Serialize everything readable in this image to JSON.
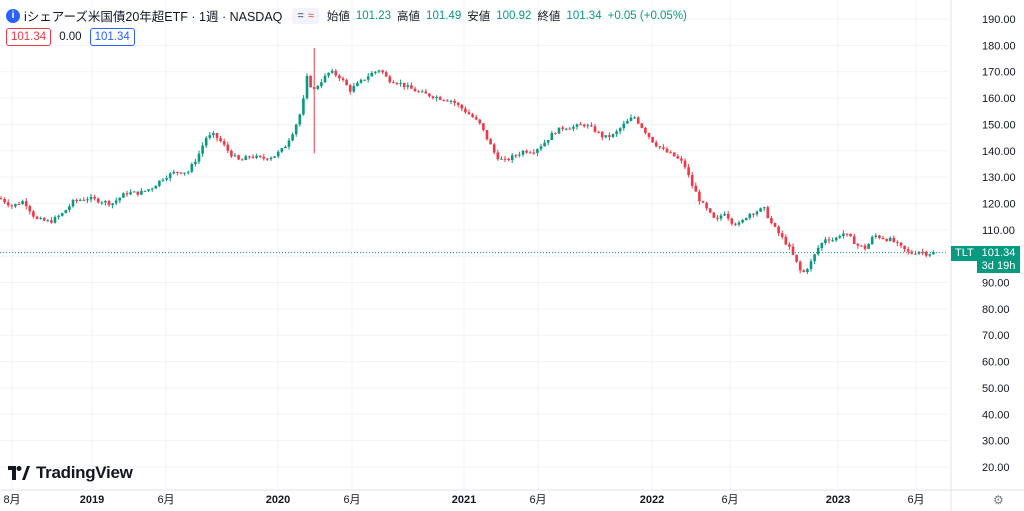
{
  "header": {
    "icon_letter": "i",
    "title": "iシェアーズ米国債20年超ETF · 1週 · NASDAQ",
    "pill_left": "=",
    "pill_right": "≈",
    "ohlc": [
      {
        "label": "始値",
        "value": "101.23"
      },
      {
        "label": "高値",
        "value": "101.49"
      },
      {
        "label": "安値",
        "value": "100.92"
      },
      {
        "label": "終値",
        "value": "101.34"
      },
      {
        "label": "",
        "value": "+0.05 (+0.05%)"
      }
    ]
  },
  "indicators": {
    "bid": "101.34",
    "spread": "0.00",
    "ask": "101.34"
  },
  "price_scale": {
    "labels": [
      "190.00",
      "180.00",
      "170.00",
      "160.00",
      "150.00",
      "140.00",
      "130.00",
      "120.00",
      "110.00",
      "100.00",
      "90.00",
      "80.00",
      "70.00",
      "60.00",
      "50.00",
      "40.00",
      "30.00",
      "20.00"
    ],
    "symbol_tag": "TLT",
    "last_price": "101.34",
    "countdown": "3d 19h"
  },
  "time_scale": {
    "labels": [
      {
        "text": "8月",
        "bold": false
      },
      {
        "text": "2019",
        "bold": true
      },
      {
        "text": "6月",
        "bold": false
      },
      {
        "text": "2020",
        "bold": true
      },
      {
        "text": "6月",
        "bold": false
      },
      {
        "text": "2021",
        "bold": true
      },
      {
        "text": "6月",
        "bold": false
      },
      {
        "text": "2022",
        "bold": true
      },
      {
        "text": "6月",
        "bold": false
      },
      {
        "text": "2023",
        "bold": true
      },
      {
        "text": "6月",
        "bold": false
      }
    ]
  },
  "branding": {
    "logo_text": "TradingView"
  },
  "colors": {
    "up": "#089981",
    "down": "#f23645",
    "grid": "#f0f3fa",
    "accent": "#2962ff"
  },
  "chart_data": {
    "type": "candlestick",
    "ylim": [
      15,
      195
    ],
    "last_price": 101.34,
    "date_range": [
      "2018-08",
      "2023-08"
    ],
    "path": [
      [
        0,
        122
      ],
      [
        12,
        119
      ],
      [
        24,
        121
      ],
      [
        36,
        114
      ],
      [
        50,
        113
      ],
      [
        62,
        116
      ],
      [
        74,
        121
      ],
      [
        88,
        122
      ],
      [
        100,
        121
      ],
      [
        112,
        120
      ],
      [
        126,
        124
      ],
      [
        140,
        124
      ],
      [
        152,
        126
      ],
      [
        164,
        130
      ],
      [
        176,
        132
      ],
      [
        188,
        132
      ],
      [
        198,
        138
      ],
      [
        206,
        145
      ],
      [
        214,
        146
      ],
      [
        222,
        143
      ],
      [
        230,
        139
      ],
      [
        240,
        136
      ],
      [
        250,
        138
      ],
      [
        262,
        137
      ],
      [
        274,
        138
      ],
      [
        284,
        141
      ],
      [
        294,
        148
      ],
      [
        302,
        156
      ],
      [
        308,
        170
      ],
      [
        312,
        162
      ],
      [
        320,
        166
      ],
      [
        330,
        170
      ],
      [
        340,
        168
      ],
      [
        350,
        163
      ],
      [
        360,
        166
      ],
      [
        370,
        169
      ],
      [
        380,
        171
      ],
      [
        388,
        167
      ],
      [
        398,
        166
      ],
      [
        408,
        164
      ],
      [
        420,
        162
      ],
      [
        430,
        161
      ],
      [
        440,
        160
      ],
      [
        452,
        159
      ],
      [
        462,
        156
      ],
      [
        472,
        153
      ],
      [
        480,
        150
      ],
      [
        488,
        144
      ],
      [
        496,
        138
      ],
      [
        504,
        136
      ],
      [
        514,
        138
      ],
      [
        524,
        140
      ],
      [
        534,
        140
      ],
      [
        544,
        143
      ],
      [
        554,
        147
      ],
      [
        564,
        149
      ],
      [
        574,
        149
      ],
      [
        584,
        150
      ],
      [
        594,
        148
      ],
      [
        604,
        145
      ],
      [
        614,
        146
      ],
      [
        624,
        150
      ],
      [
        634,
        153
      ],
      [
        644,
        148
      ],
      [
        654,
        143
      ],
      [
        664,
        140
      ],
      [
        674,
        138
      ],
      [
        684,
        135
      ],
      [
        692,
        127
      ],
      [
        700,
        121
      ],
      [
        708,
        117
      ],
      [
        716,
        113
      ],
      [
        724,
        117
      ],
      [
        732,
        113
      ],
      [
        740,
        112
      ],
      [
        748,
        116
      ],
      [
        756,
        117
      ],
      [
        764,
        118
      ],
      [
        772,
        112
      ],
      [
        780,
        108
      ],
      [
        788,
        104
      ],
      [
        796,
        98
      ],
      [
        802,
        93
      ],
      [
        810,
        97
      ],
      [
        818,
        103
      ],
      [
        826,
        107
      ],
      [
        834,
        106
      ],
      [
        842,
        109
      ],
      [
        850,
        107
      ],
      [
        858,
        104
      ],
      [
        866,
        103
      ],
      [
        874,
        108
      ],
      [
        882,
        107
      ],
      [
        892,
        106
      ],
      [
        902,
        103
      ],
      [
        910,
        101
      ],
      [
        920,
        102
      ],
      [
        926,
        101
      ],
      [
        934,
        101.34
      ]
    ]
  }
}
